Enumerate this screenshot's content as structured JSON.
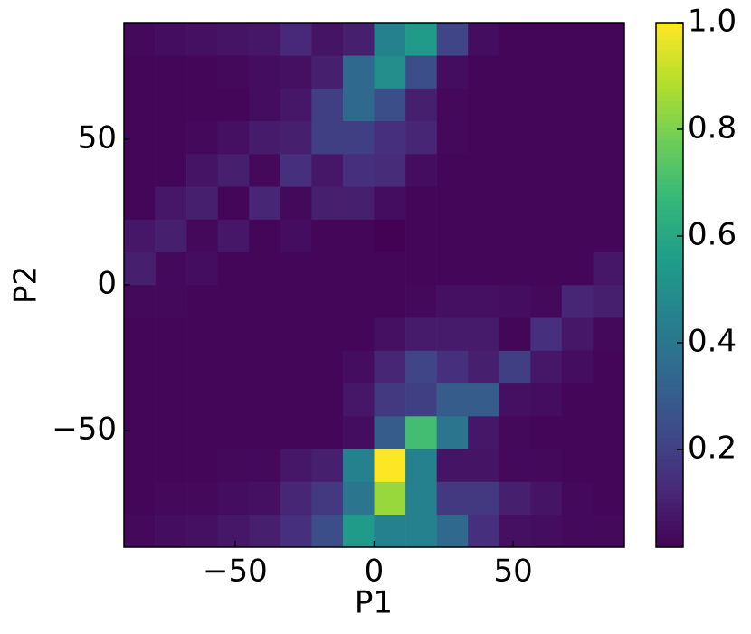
{
  "chart_data": {
    "type": "heatmap",
    "colormap": "viridis",
    "x_label": "P1",
    "y_label": "P2",
    "xbins": [
      -90,
      -78.75,
      -67.5,
      -56.25,
      -45,
      -33.75,
      -22.5,
      -11.25,
      0,
      11.25,
      22.5,
      33.75,
      45,
      56.25,
      67.5,
      78.75,
      90
    ],
    "ybins": [
      -90,
      -78.75,
      -67.5,
      -56.25,
      -45,
      -33.75,
      -22.5,
      -11.25,
      0,
      11.25,
      22.5,
      33.75,
      45,
      56.25,
      67.5,
      78.75,
      90
    ],
    "z": [
      [
        0.04,
        0.05,
        0.06,
        0.08,
        0.1,
        0.15,
        0.25,
        0.55,
        0.45,
        0.45,
        0.35,
        0.15,
        0.06,
        0.05,
        0.04,
        0.04
      ],
      [
        0.03,
        0.04,
        0.04,
        0.05,
        0.06,
        0.12,
        0.18,
        0.4,
        0.85,
        0.45,
        0.18,
        0.18,
        0.1,
        0.07,
        0.04,
        0.03
      ],
      [
        0.03,
        0.03,
        0.03,
        0.04,
        0.04,
        0.08,
        0.1,
        0.45,
        1.0,
        0.45,
        0.07,
        0.07,
        0.04,
        0.04,
        0.03,
        0.03
      ],
      [
        0.03,
        0.03,
        0.03,
        0.03,
        0.03,
        0.03,
        0.03,
        0.05,
        0.3,
        0.7,
        0.4,
        0.08,
        0.04,
        0.03,
        0.03,
        0.03
      ],
      [
        0.03,
        0.03,
        0.03,
        0.03,
        0.03,
        0.03,
        0.03,
        0.08,
        0.18,
        0.2,
        0.3,
        0.3,
        0.06,
        0.05,
        0.03,
        0.03
      ],
      [
        0.03,
        0.03,
        0.03,
        0.03,
        0.03,
        0.03,
        0.03,
        0.05,
        0.12,
        0.22,
        0.15,
        0.1,
        0.2,
        0.08,
        0.05,
        0.03
      ],
      [
        0.03,
        0.03,
        0.03,
        0.03,
        0.03,
        0.03,
        0.03,
        0.03,
        0.06,
        0.09,
        0.09,
        0.09,
        0.03,
        0.15,
        0.08,
        0.04
      ],
      [
        0.04,
        0.04,
        0.03,
        0.03,
        0.03,
        0.03,
        0.03,
        0.03,
        0.03,
        0.04,
        0.06,
        0.06,
        0.05,
        0.04,
        0.12,
        0.1
      ],
      [
        0.1,
        0.04,
        0.05,
        0.03,
        0.03,
        0.03,
        0.03,
        0.03,
        0.03,
        0.03,
        0.03,
        0.03,
        0.03,
        0.03,
        0.03,
        0.08
      ],
      [
        0.08,
        0.1,
        0.04,
        0.08,
        0.03,
        0.05,
        0.03,
        0.03,
        0.02,
        0.03,
        0.03,
        0.03,
        0.03,
        0.03,
        0.03,
        0.03
      ],
      [
        0.03,
        0.08,
        0.1,
        0.03,
        0.12,
        0.04,
        0.1,
        0.1,
        0.05,
        0.03,
        0.03,
        0.03,
        0.03,
        0.03,
        0.03,
        0.03
      ],
      [
        0.03,
        0.03,
        0.07,
        0.1,
        0.04,
        0.15,
        0.08,
        0.15,
        0.14,
        0.05,
        0.03,
        0.03,
        0.03,
        0.03,
        0.03,
        0.03
      ],
      [
        0.03,
        0.03,
        0.04,
        0.06,
        0.09,
        0.1,
        0.2,
        0.2,
        0.15,
        0.12,
        0.04,
        0.03,
        0.03,
        0.03,
        0.03,
        0.03
      ],
      [
        0.03,
        0.03,
        0.03,
        0.03,
        0.05,
        0.08,
        0.2,
        0.35,
        0.25,
        0.1,
        0.04,
        0.03,
        0.03,
        0.03,
        0.03,
        0.03
      ],
      [
        0.03,
        0.03,
        0.03,
        0.04,
        0.05,
        0.06,
        0.1,
        0.35,
        0.5,
        0.25,
        0.05,
        0.03,
        0.03,
        0.03,
        0.03,
        0.03
      ],
      [
        0.04,
        0.05,
        0.06,
        0.07,
        0.08,
        0.13,
        0.07,
        0.1,
        0.45,
        0.55,
        0.22,
        0.05,
        0.03,
        0.03,
        0.03,
        0.03
      ]
    ],
    "xlim": [
      -90,
      90
    ],
    "ylim": [
      -90,
      90
    ],
    "xticks": [
      {
        "value": -50,
        "label": "−50"
      },
      0,
      50
    ],
    "yticks": [
      {
        "value": -50,
        "label": "−50"
      },
      0,
      50
    ],
    "clim": [
      0.017,
      1
    ],
    "cticks": [
      0.2,
      0.4,
      0.6,
      0.8,
      {
        "value": 1,
        "label": "1.0"
      }
    ]
  }
}
